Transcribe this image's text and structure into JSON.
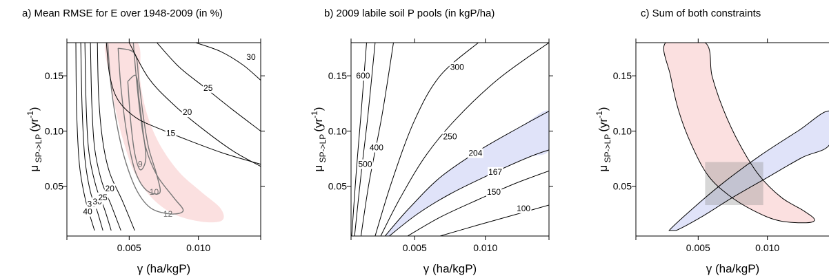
{
  "chart_data": [
    {
      "type": "contour",
      "title": "a) Mean RMSE for E over 1948-2009 (in %)",
      "xlabel": "γ (ha/kgP)",
      "ylabel_main": "μ",
      "ylabel_sub": "SP->LP",
      "ylabel_unit": "(yr",
      "ylabel_exp": "-1",
      "ylabel_close": ")",
      "xlim": [
        0.0005,
        0.0145
      ],
      "ylim": [
        0.005,
        0.18
      ],
      "xticks": [
        {
          "v": 0.005,
          "label": "0.005"
        },
        {
          "v": 0.01,
          "label": "0.010"
        }
      ],
      "yticks": [
        {
          "v": 0.05,
          "label": "0.05"
        },
        {
          "v": 0.1,
          "label": "0.10"
        },
        {
          "v": 0.15,
          "label": "0.15"
        }
      ],
      "region_colors": {
        "red": "#fadada"
      },
      "contours": [
        {
          "level": "40",
          "label_at": [
            0.002,
            0.027
          ],
          "points": [
            [
              0.00115,
              0.18
            ],
            [
              0.0012,
              0.12
            ],
            [
              0.0014,
              0.07
            ],
            [
              0.0018,
              0.04
            ],
            [
              0.0022,
              0.022
            ],
            [
              0.0025,
              0.01
            ]
          ]
        },
        {
          "level": "35",
          "label_at": [
            0.0023,
            0.034
          ],
          "points": [
            [
              0.0015,
              0.18
            ],
            [
              0.0016,
              0.12
            ],
            [
              0.0018,
              0.075
            ],
            [
              0.0022,
              0.045
            ],
            [
              0.0027,
              0.027
            ],
            [
              0.0031,
              0.01
            ]
          ]
        },
        {
          "level": "30",
          "label_at": [
            0.0027,
            0.036
          ],
          "points": [
            [
              0.0018,
              0.18
            ],
            [
              0.0019,
              0.12
            ],
            [
              0.0021,
              0.08
            ],
            [
              0.0026,
              0.05
            ],
            [
              0.0032,
              0.03
            ],
            [
              0.0037,
              0.01
            ]
          ]
        },
        {
          "level": "25",
          "label_at": [
            0.0031,
            0.04
          ],
          "points": [
            [
              0.0022,
              0.18
            ],
            [
              0.0023,
              0.125
            ],
            [
              0.0025,
              0.085
            ],
            [
              0.003,
              0.055
            ],
            [
              0.0037,
              0.033
            ],
            [
              0.0044,
              0.01
            ]
          ]
        },
        {
          "level": "20",
          "label_at": [
            0.0036,
            0.048
          ],
          "points": [
            [
              0.0027,
              0.18
            ],
            [
              0.0028,
              0.13
            ],
            [
              0.0031,
              0.09
            ],
            [
              0.0036,
              0.062
            ],
            [
              0.0045,
              0.037
            ],
            [
              0.0054,
              0.01
            ]
          ]
        },
        {
          "level": "15",
          "label_at": [
            0.008,
            0.098
          ],
          "closed": false,
          "points": [
            [
              0.00335,
              0.18
            ],
            [
              0.0036,
              0.15
            ],
            [
              0.0042,
              0.128
            ],
            [
              0.0055,
              0.112
            ],
            [
              0.0072,
              0.102
            ],
            [
              0.0092,
              0.092
            ],
            [
              0.0118,
              0.08
            ],
            [
              0.0145,
              0.07
            ]
          ]
        },
        {
          "level": "20",
          "label_at": [
            0.0092,
            0.117
          ],
          "points": [
            [
              0.005,
              0.18
            ],
            [
              0.0064,
              0.148
            ],
            [
              0.0082,
              0.124
            ],
            [
              0.0103,
              0.102
            ],
            [
              0.0125,
              0.082
            ],
            [
              0.0145,
              0.068
            ]
          ]
        },
        {
          "level": "25",
          "label_at": [
            0.0107,
            0.139
          ],
          "points": [
            [
              0.007,
              0.18
            ],
            [
              0.0086,
              0.158
            ],
            [
              0.0104,
              0.14
            ],
            [
              0.0124,
              0.12
            ],
            [
              0.0145,
              0.1
            ]
          ]
        },
        {
          "level": "30",
          "label_at": [
            0.0138,
            0.167
          ],
          "points": [
            [
              0.0098,
              0.18
            ],
            [
              0.0116,
              0.172
            ],
            [
              0.0132,
              0.16
            ],
            [
              0.0145,
              0.146
            ]
          ]
        }
      ],
      "grey_contours": [
        {
          "level": "12",
          "label_at": [
            0.0078,
            0.025
          ],
          "points": [
            [
              0.00345,
              0.18
            ],
            [
              0.0037,
              0.14
            ],
            [
              0.0042,
              0.1
            ],
            [
              0.0048,
              0.07
            ],
            [
              0.0056,
              0.045
            ],
            [
              0.0066,
              0.03
            ],
            [
              0.008,
              0.025
            ],
            [
              0.0089,
              0.028
            ],
            [
              0.0082,
              0.04
            ],
            [
              0.007,
              0.06
            ],
            [
              0.0062,
              0.085
            ],
            [
              0.0058,
              0.115
            ],
            [
              0.0055,
              0.15
            ],
            [
              0.0053,
              0.18
            ]
          ]
        },
        {
          "level": "10",
          "label_at": [
            0.0068,
            0.045
          ],
          "points": [
            [
              0.0042,
              0.175
            ],
            [
              0.0044,
              0.14
            ],
            [
              0.0048,
              0.1
            ],
            [
              0.0054,
              0.065
            ],
            [
              0.0062,
              0.047
            ],
            [
              0.0072,
              0.044
            ],
            [
              0.007,
              0.06
            ],
            [
              0.0064,
              0.085
            ],
            [
              0.006,
              0.115
            ],
            [
              0.0057,
              0.145
            ],
            [
              0.0054,
              0.17
            ],
            [
              0.0042,
              0.175
            ]
          ]
        },
        {
          "level": "9",
          "label_at": [
            0.0058,
            0.07
          ],
          "points": [
            [
              0.0049,
              0.145
            ],
            [
              0.0051,
              0.11
            ],
            [
              0.0054,
              0.08
            ],
            [
              0.0058,
              0.065
            ],
            [
              0.0062,
              0.075
            ],
            [
              0.006,
              0.1
            ],
            [
              0.0057,
              0.13
            ],
            [
              0.0055,
              0.15
            ],
            [
              0.0049,
              0.145
            ]
          ]
        }
      ],
      "red_region": [
        [
          0.00335,
          0.18
        ],
        [
          0.0036,
          0.15
        ],
        [
          0.004,
          0.12
        ],
        [
          0.0046,
          0.09
        ],
        [
          0.0054,
          0.062
        ],
        [
          0.0066,
          0.04
        ],
        [
          0.0082,
          0.025
        ],
        [
          0.0102,
          0.018
        ],
        [
          0.0117,
          0.019
        ],
        [
          0.0116,
          0.03
        ],
        [
          0.0102,
          0.045
        ],
        [
          0.0086,
          0.063
        ],
        [
          0.0072,
          0.088
        ],
        [
          0.0063,
          0.115
        ],
        [
          0.0058,
          0.145
        ],
        [
          0.0056,
          0.18
        ]
      ]
    },
    {
      "type": "contour",
      "title": "b) 2009 labile soil P pools (in kgP/ha)",
      "xlabel": "γ (ha/kgP)",
      "ylabel_main": "μ",
      "ylabel_sub": "SP->LP",
      "ylabel_unit": "(yr",
      "ylabel_exp": "-1",
      "ylabel_close": ")",
      "xlim": [
        0.0005,
        0.0145
      ],
      "ylim": [
        0.005,
        0.18
      ],
      "xticks": [
        {
          "v": 0.005,
          "label": "0.005"
        },
        {
          "v": 0.01,
          "label": "0.010"
        }
      ],
      "yticks": [
        {
          "v": 0.05,
          "label": "0.05"
        },
        {
          "v": 0.1,
          "label": "0.10"
        },
        {
          "v": 0.15,
          "label": "0.15"
        }
      ],
      "region_colors": {
        "blue": "#dde0f8"
      },
      "contours": [
        {
          "level": "600",
          "label_at": [
            0.00135,
            0.15
          ],
          "points": [
            [
              0.00055,
              0.005
            ],
            [
              0.00085,
              0.06
            ],
            [
              0.0012,
              0.115
            ],
            [
              0.0016,
              0.18
            ]
          ]
        },
        {
          "level": "500",
          "label_at": [
            0.0015,
            0.07
          ],
          "points": [
            [
              0.00075,
              0.005
            ],
            [
              0.0012,
              0.06
            ],
            [
              0.0017,
              0.115
            ],
            [
              0.0022,
              0.18
            ]
          ]
        },
        {
          "level": "400",
          "label_at": [
            0.0023,
            0.085
          ],
          "points": [
            [
              0.0012,
              0.005
            ],
            [
              0.0018,
              0.055
            ],
            [
              0.0027,
              0.115
            ],
            [
              0.0035,
              0.18
            ]
          ]
        },
        {
          "level": "300",
          "label_at": [
            0.008,
            0.158
          ],
          "points": [
            [
              0.0022,
              0.005
            ],
            [
              0.0034,
              0.055
            ],
            [
              0.005,
              0.11
            ],
            [
              0.0068,
              0.15
            ],
            [
              0.0095,
              0.18
            ]
          ]
        },
        {
          "level": "250",
          "label_at": [
            0.0075,
            0.095
          ],
          "points": [
            [
              0.0026,
              0.005
            ],
            [
              0.004,
              0.04
            ],
            [
              0.0058,
              0.078
            ],
            [
              0.008,
              0.112
            ],
            [
              0.011,
              0.148
            ],
            [
              0.0145,
              0.18
            ]
          ]
        },
        {
          "level": "204",
          "label_at": [
            0.0093,
            0.08
          ],
          "points": [
            [
              0.0029,
              0.005
            ],
            [
              0.0046,
              0.03
            ],
            [
              0.0068,
              0.058
            ],
            [
              0.0095,
              0.082
            ],
            [
              0.0125,
              0.104
            ],
            [
              0.0145,
              0.118
            ]
          ]
        },
        {
          "level": "167",
          "label_at": [
            0.0107,
            0.063
          ],
          "points": [
            [
              0.0032,
              0.005
            ],
            [
              0.0052,
              0.025
            ],
            [
              0.0075,
              0.043
            ],
            [
              0.0102,
              0.06
            ],
            [
              0.013,
              0.076
            ],
            [
              0.0145,
              0.083
            ]
          ]
        },
        {
          "level": "150",
          "label_at": [
            0.0106,
            0.045
          ],
          "points": [
            [
              0.0045,
              0.005
            ],
            [
              0.0068,
              0.022
            ],
            [
              0.0095,
              0.038
            ],
            [
              0.012,
              0.052
            ],
            [
              0.0145,
              0.064
            ]
          ]
        },
        {
          "level": "100",
          "label_at": [
            0.0127,
            0.03
          ],
          "points": [
            [
              0.0068,
              0.005
            ],
            [
              0.0095,
              0.015
            ],
            [
              0.012,
              0.024
            ],
            [
              0.0145,
              0.033
            ]
          ]
        }
      ],
      "blue_region": [
        [
          0.0029,
          0.005
        ],
        [
          0.0046,
          0.03
        ],
        [
          0.0068,
          0.058
        ],
        [
          0.0095,
          0.082
        ],
        [
          0.0125,
          0.104
        ],
        [
          0.0145,
          0.118
        ],
        [
          0.0145,
          0.083
        ],
        [
          0.013,
          0.076
        ],
        [
          0.0102,
          0.06
        ],
        [
          0.0075,
          0.043
        ],
        [
          0.0052,
          0.025
        ],
        [
          0.0032,
          0.005
        ]
      ]
    },
    {
      "type": "contour",
      "title": "c) Sum of both constraints",
      "xlabel": "γ (ha/kgP)",
      "ylabel_main": "μ",
      "ylabel_sub": "SP->LP",
      "ylabel_unit": "(yr",
      "ylabel_exp": "-1",
      "ylabel_close": ")",
      "xlim": [
        0.0005,
        0.0145
      ],
      "ylim": [
        0.005,
        0.18
      ],
      "xticks": [
        {
          "v": 0.005,
          "label": "0.005"
        },
        {
          "v": 0.01,
          "label": "0.010"
        }
      ],
      "yticks": [
        {
          "v": 0.05,
          "label": "0.05"
        },
        {
          "v": 0.1,
          "label": "0.10"
        },
        {
          "v": 0.15,
          "label": "0.15"
        }
      ],
      "region_colors": {
        "red": "#fadada",
        "blue": "#dde0f8",
        "overlap": "#8c8c8c"
      },
      "red_region": [
        [
          0.00265,
          0.18
        ],
        [
          0.003,
          0.15
        ],
        [
          0.0036,
          0.118
        ],
        [
          0.0045,
          0.088
        ],
        [
          0.0057,
          0.06
        ],
        [
          0.0072,
          0.042
        ],
        [
          0.009,
          0.028
        ],
        [
          0.0108,
          0.019
        ],
        [
          0.0128,
          0.017
        ],
        [
          0.0134,
          0.02
        ],
        [
          0.0126,
          0.028
        ],
        [
          0.011,
          0.04
        ],
        [
          0.0094,
          0.06
        ],
        [
          0.008,
          0.088
        ],
        [
          0.0068,
          0.12
        ],
        [
          0.006,
          0.15
        ],
        [
          0.0055,
          0.18
        ]
      ],
      "blue_region": [
        [
          0.0029,
          0.01
        ],
        [
          0.0048,
          0.032
        ],
        [
          0.007,
          0.055
        ],
        [
          0.0095,
          0.078
        ],
        [
          0.0122,
          0.1
        ],
        [
          0.0145,
          0.118
        ],
        [
          0.0145,
          0.088
        ],
        [
          0.0125,
          0.076
        ],
        [
          0.01,
          0.058
        ],
        [
          0.0075,
          0.04
        ],
        [
          0.0052,
          0.022
        ],
        [
          0.0034,
          0.01
        ]
      ],
      "overlap_box": {
        "x": [
          0.0055,
          0.0097
        ],
        "y": [
          0.033,
          0.072
        ]
      }
    }
  ]
}
